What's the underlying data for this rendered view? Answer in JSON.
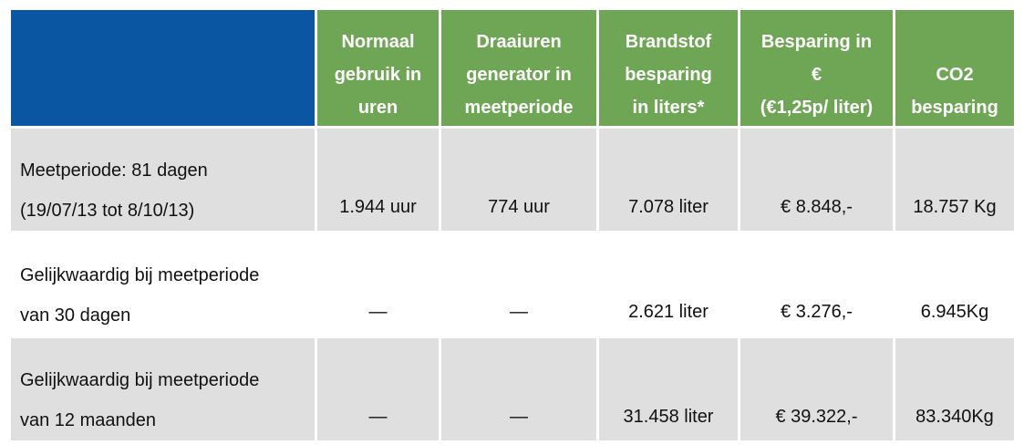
{
  "header": {
    "columns": [
      {
        "lines": [
          "Normaal",
          "gebruik in",
          "uren"
        ]
      },
      {
        "lines": [
          "Draaiuren",
          "generator in",
          "meetperiode"
        ]
      },
      {
        "lines": [
          "Brandstof",
          "besparing",
          "in liters*"
        ]
      },
      {
        "lines": [
          "Besparing in",
          "€",
          "(€1,25p/ liter)"
        ]
      },
      {
        "lines": [
          "CO2",
          "besparing"
        ]
      }
    ]
  },
  "rows": [
    {
      "label_lines": [
        "Meetperiode: 81 dagen",
        "(19/07/13 tot 8/10/13)"
      ],
      "values": [
        "1.944 uur",
        "774 uur",
        "7.078 liter",
        "€ 8.848,-",
        "18.757 Kg"
      ]
    },
    {
      "label_lines": [
        "Gelijkwaardig bij meetperiode",
        "van 30 dagen"
      ],
      "values": [
        "—",
        "—",
        "2.621 liter",
        "€ 3.276,-",
        "6.945Kg"
      ]
    },
    {
      "label_lines": [
        "Gelijkwaardig bij meetperiode",
        "van 12 maanden"
      ],
      "values": [
        "—",
        "—",
        "31.458 liter",
        "€ 39.322,-",
        "83.340Kg"
      ]
    }
  ],
  "colors": {
    "header_blue": "#0b56a3",
    "header_green": "#6fa656",
    "row_gray": "#dfdfdf",
    "row_white": "#ffffff"
  }
}
